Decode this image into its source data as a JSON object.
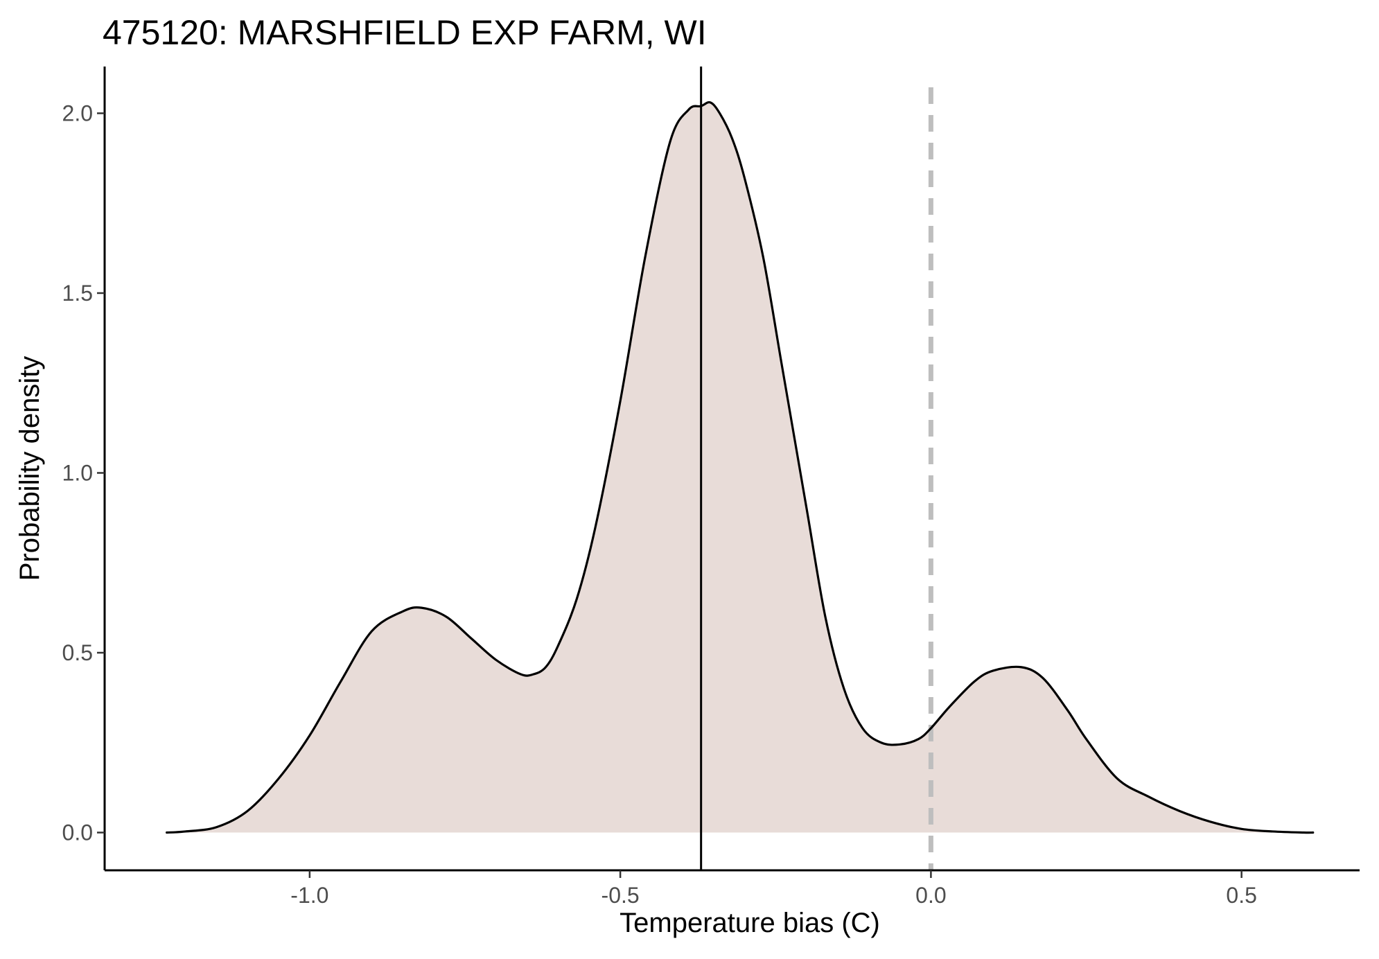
{
  "chart_data": {
    "type": "area",
    "title": "475120: MARSHFIELD EXP FARM, WI",
    "xlabel": "Temperature bias (C)",
    "ylabel": "Probability density",
    "xlim": [
      -1.33,
      0.69
    ],
    "ylim": [
      -0.105,
      2.13
    ],
    "x_ticks": [
      -1.0,
      -0.5,
      0.0,
      0.5
    ],
    "x_tick_labels": [
      "-1.0",
      "-0.5",
      "0.0",
      "0.5"
    ],
    "y_ticks": [
      0.0,
      0.5,
      1.0,
      1.5,
      2.0
    ],
    "y_tick_labels": [
      "0.0",
      "0.5",
      "1.0",
      "1.5",
      "2.0"
    ],
    "grid": false,
    "fill_color": "#e8dcd8",
    "line_color": "#000000",
    "series": [
      {
        "x": [
          -1.23,
          -1.2,
          -1.15,
          -1.1,
          -1.05,
          -1.0,
          -0.95,
          -0.9,
          -0.85,
          -0.82,
          -0.78,
          -0.74,
          -0.7,
          -0.66,
          -0.64,
          -0.62,
          -0.6,
          -0.57,
          -0.54,
          -0.5,
          -0.46,
          -0.42,
          -0.39,
          -0.37,
          -0.355,
          -0.34,
          -0.32,
          -0.3,
          -0.27,
          -0.24,
          -0.2,
          -0.17,
          -0.14,
          -0.11,
          -0.08,
          -0.05,
          -0.02,
          0.0,
          0.03,
          0.07,
          0.1,
          0.145,
          0.18,
          0.22,
          0.25,
          0.3,
          0.35,
          0.4,
          0.45,
          0.5,
          0.55,
          0.6,
          0.615
        ],
        "y": [
          0.0,
          0.003,
          0.015,
          0.06,
          0.15,
          0.27,
          0.42,
          0.56,
          0.615,
          0.625,
          0.6,
          0.54,
          0.48,
          0.44,
          0.44,
          0.46,
          0.52,
          0.65,
          0.85,
          1.2,
          1.6,
          1.92,
          2.01,
          2.02,
          2.03,
          2.0,
          1.93,
          1.82,
          1.6,
          1.3,
          0.9,
          0.6,
          0.4,
          0.29,
          0.25,
          0.245,
          0.26,
          0.29,
          0.35,
          0.42,
          0.45,
          0.46,
          0.43,
          0.34,
          0.26,
          0.15,
          0.1,
          0.06,
          0.03,
          0.01,
          0.003,
          0.0,
          0.0
        ]
      }
    ],
    "vlines": [
      {
        "x": -0.37,
        "style": "solid",
        "color": "#000000"
      },
      {
        "x": 0.0,
        "style": "dashed",
        "color": "#bebebe"
      }
    ]
  }
}
